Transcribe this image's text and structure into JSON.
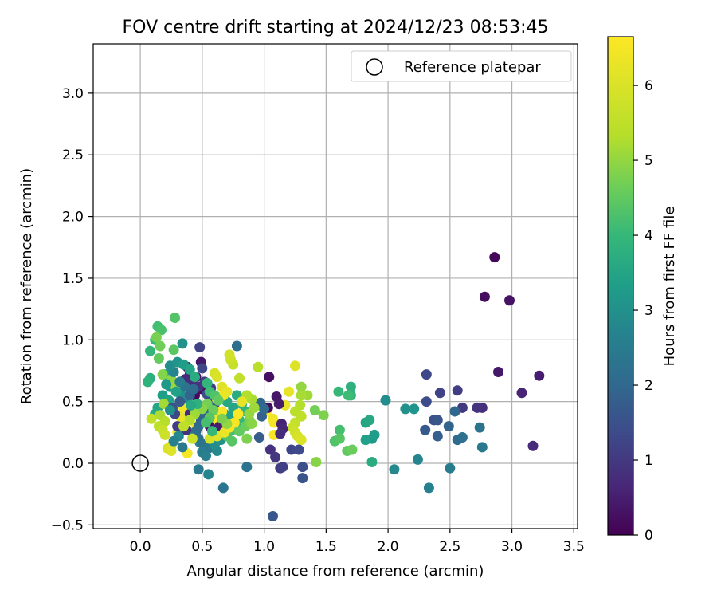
{
  "chart_data": {
    "type": "scatter",
    "title": "FOV centre drift starting at 2024/12/23 08:53:45",
    "xlabel": "Angular distance from reference (arcmin)",
    "ylabel": "Rotation from reference (arcmin)",
    "xlim": [
      -0.38,
      3.53
    ],
    "ylim": [
      -0.53,
      3.4
    ],
    "xticks": [
      0.0,
      0.5,
      1.0,
      1.5,
      2.0,
      2.5,
      3.0,
      3.5
    ],
    "xtick_labels": [
      "0.0",
      "0.5",
      "1.0",
      "1.5",
      "2.0",
      "2.5",
      "3.0",
      "3.5"
    ],
    "yticks": [
      -0.5,
      0.0,
      0.5,
      1.0,
      1.5,
      2.0,
      2.5,
      3.0
    ],
    "ytick_labels": [
      "−0.5",
      "0.0",
      "0.5",
      "1.0",
      "1.5",
      "2.0",
      "2.5",
      "3.0"
    ],
    "grid": true,
    "legend": {
      "position": "top-right",
      "label": "Reference platepar"
    },
    "colorbar": {
      "label": "Hours from first FF file",
      "colormap": "viridis",
      "range": [
        0,
        6.65
      ],
      "ticks": [
        0,
        1,
        2,
        3,
        4,
        5,
        6
      ],
      "tick_labels": [
        "0",
        "1",
        "2",
        "3",
        "4",
        "5",
        "6"
      ]
    },
    "reference_point": {
      "x": 0.0,
      "y": 0.0
    },
    "points": [
      [
        2.86,
        1.67,
        0.1
      ],
      [
        2.78,
        1.35,
        0.2
      ],
      [
        2.98,
        1.32,
        0.3
      ],
      [
        2.89,
        0.74,
        0.4
      ],
      [
        3.22,
        0.71,
        0.5
      ],
      [
        3.08,
        0.57,
        0.6
      ],
      [
        3.17,
        0.14,
        0.7
      ],
      [
        2.76,
        0.45,
        0.8
      ],
      [
        2.72,
        0.45,
        0.9
      ],
      [
        2.6,
        0.45,
        1.0
      ],
      [
        2.56,
        0.59,
        1.1
      ],
      [
        2.42,
        0.57,
        1.2
      ],
      [
        2.31,
        0.72,
        1.3
      ],
      [
        2.31,
        0.5,
        1.4
      ],
      [
        2.37,
        0.35,
        1.5
      ],
      [
        2.4,
        0.35,
        1.6
      ],
      [
        2.3,
        0.27,
        1.7
      ],
      [
        2.4,
        0.22,
        1.8
      ],
      [
        2.49,
        0.3,
        1.9
      ],
      [
        2.54,
        0.42,
        2.0
      ],
      [
        2.56,
        0.19,
        2.1
      ],
      [
        2.6,
        0.21,
        2.2
      ],
      [
        2.74,
        0.29,
        2.3
      ],
      [
        2.76,
        0.13,
        2.4
      ],
      [
        2.5,
        -0.04,
        2.5
      ],
      [
        2.33,
        -0.2,
        2.6
      ],
      [
        2.24,
        0.03,
        2.7
      ],
      [
        2.05,
        -0.05,
        2.8
      ],
      [
        1.98,
        0.51,
        2.9
      ],
      [
        2.14,
        0.44,
        3.0
      ],
      [
        2.21,
        0.44,
        3.1
      ],
      [
        1.87,
        0.2,
        3.2
      ],
      [
        1.89,
        0.23,
        3.3
      ],
      [
        1.82,
        0.19,
        3.4
      ],
      [
        1.82,
        0.33,
        3.5
      ],
      [
        1.85,
        0.35,
        3.6
      ],
      [
        1.87,
        0.01,
        3.7
      ],
      [
        1.7,
        0.62,
        3.8
      ],
      [
        1.7,
        0.55,
        3.9
      ],
      [
        1.6,
        0.58,
        4.0
      ],
      [
        1.68,
        0.55,
        4.1
      ],
      [
        1.61,
        0.27,
        4.2
      ],
      [
        1.57,
        0.18,
        4.3
      ],
      [
        1.61,
        0.2,
        4.4
      ],
      [
        1.67,
        0.1,
        4.5
      ],
      [
        1.71,
        0.11,
        4.6
      ],
      [
        1.41,
        0.43,
        4.7
      ],
      [
        1.48,
        0.39,
        4.8
      ],
      [
        1.42,
        0.01,
        4.9
      ],
      [
        1.3,
        0.62,
        5.0
      ],
      [
        1.35,
        0.55,
        5.1
      ],
      [
        1.3,
        0.55,
        5.2
      ],
      [
        1.29,
        0.47,
        5.3
      ],
      [
        1.25,
        0.42,
        5.4
      ],
      [
        1.3,
        0.38,
        5.5
      ],
      [
        1.25,
        0.33,
        5.6
      ],
      [
        1.23,
        0.29,
        5.7
      ],
      [
        1.25,
        0.25,
        5.8
      ],
      [
        1.27,
        0.22,
        5.9
      ],
      [
        1.3,
        0.19,
        6.0
      ],
      [
        1.25,
        0.79,
        6.1
      ],
      [
        1.2,
        0.58,
        6.2
      ],
      [
        1.17,
        0.47,
        6.3
      ],
      [
        1.07,
        0.36,
        6.4
      ],
      [
        1.08,
        0.33,
        6.5
      ],
      [
        1.08,
        0.23,
        6.55
      ],
      [
        1.02,
        0.42,
        6.6
      ],
      [
        1.03,
        0.45,
        0.15
      ],
      [
        1.04,
        0.7,
        0.25
      ],
      [
        1.1,
        0.54,
        0.35
      ],
      [
        1.12,
        0.48,
        0.45
      ],
      [
        1.14,
        0.32,
        0.55
      ],
      [
        1.15,
        0.28,
        0.65
      ],
      [
        1.13,
        0.24,
        0.75
      ],
      [
        1.05,
        0.11,
        0.85
      ],
      [
        1.09,
        0.05,
        0.95
      ],
      [
        1.13,
        -0.04,
        1.05
      ],
      [
        1.15,
        -0.03,
        1.15
      ],
      [
        1.22,
        0.11,
        1.25
      ],
      [
        1.28,
        0.11,
        1.35
      ],
      [
        1.31,
        -0.03,
        1.45
      ],
      [
        1.31,
        -0.12,
        1.55
      ],
      [
        1.07,
        -0.43,
        1.65
      ],
      [
        0.96,
        0.21,
        1.75
      ],
      [
        0.98,
        0.38,
        1.85
      ],
      [
        0.97,
        0.49,
        1.95
      ],
      [
        1.0,
        0.44,
        2.05
      ],
      [
        0.78,
        0.95,
        2.15
      ],
      [
        0.86,
        -0.03,
        2.25
      ],
      [
        0.67,
        -0.2,
        2.35
      ],
      [
        0.47,
        -0.05,
        2.45
      ],
      [
        0.52,
        0.12,
        2.55
      ],
      [
        0.48,
        0.17,
        2.65
      ],
      [
        0.42,
        0.25,
        2.75
      ],
      [
        0.37,
        0.49,
        2.85
      ],
      [
        0.33,
        0.55,
        2.95
      ],
      [
        0.34,
        0.97,
        3.05
      ],
      [
        0.24,
        0.62,
        3.15
      ],
      [
        0.2,
        0.72,
        3.25
      ],
      [
        0.18,
        0.55,
        3.35
      ],
      [
        0.23,
        0.51,
        3.45
      ],
      [
        0.14,
        0.45,
        3.55
      ],
      [
        0.12,
        0.4,
        3.65
      ],
      [
        0.08,
        0.69,
        3.75
      ],
      [
        0.06,
        0.66,
        3.85
      ],
      [
        0.08,
        0.91,
        3.95
      ],
      [
        0.12,
        1.0,
        4.05
      ],
      [
        0.14,
        1.11,
        4.15
      ],
      [
        0.17,
        1.08,
        4.25
      ],
      [
        0.28,
        1.18,
        4.35
      ],
      [
        0.27,
        0.92,
        4.45
      ],
      [
        0.15,
        0.85,
        4.55
      ],
      [
        0.16,
        0.95,
        4.65
      ],
      [
        0.13,
        1.02,
        4.75
      ],
      [
        0.18,
        0.72,
        4.85
      ],
      [
        0.25,
        0.68,
        4.95
      ],
      [
        0.28,
        0.63,
        5.05
      ],
      [
        0.19,
        0.48,
        5.15
      ],
      [
        0.16,
        0.39,
        5.25
      ],
      [
        0.2,
        0.34,
        5.35
      ],
      [
        0.15,
        0.3,
        5.45
      ],
      [
        0.09,
        0.36,
        5.55
      ],
      [
        0.18,
        0.27,
        5.65
      ],
      [
        0.2,
        0.23,
        5.75
      ],
      [
        0.25,
        0.14,
        5.85
      ],
      [
        0.22,
        0.12,
        5.95
      ],
      [
        0.25,
        0.1,
        6.05
      ],
      [
        0.35,
        0.34,
        6.15
      ],
      [
        0.32,
        0.38,
        6.25
      ],
      [
        0.35,
        0.45,
        6.35
      ],
      [
        0.3,
        0.25,
        6.45
      ],
      [
        0.38,
        0.08,
        6.5
      ],
      [
        0.45,
        0.3,
        6.6
      ],
      [
        0.44,
        0.55,
        0.1
      ],
      [
        0.5,
        0.6,
        0.2
      ],
      [
        0.45,
        0.7,
        0.3
      ],
      [
        0.49,
        0.82,
        0.4
      ],
      [
        0.38,
        0.78,
        0.5
      ],
      [
        0.4,
        0.72,
        0.6
      ],
      [
        0.36,
        0.68,
        0.7
      ],
      [
        0.42,
        0.66,
        0.8
      ],
      [
        0.47,
        0.62,
        0.9
      ],
      [
        0.52,
        0.66,
        1.0
      ],
      [
        0.57,
        0.61,
        1.1
      ],
      [
        0.48,
        0.94,
        1.2
      ],
      [
        0.5,
        0.77,
        1.3
      ],
      [
        0.54,
        0.56,
        1.4
      ],
      [
        0.58,
        0.52,
        1.5
      ],
      [
        0.6,
        0.48,
        1.6
      ],
      [
        0.53,
        0.44,
        1.7
      ],
      [
        0.52,
        0.4,
        1.8
      ],
      [
        0.49,
        0.35,
        1.9
      ],
      [
        0.47,
        0.3,
        2.0
      ],
      [
        0.45,
        0.26,
        2.1
      ],
      [
        0.47,
        0.2,
        2.2
      ],
      [
        0.5,
        0.16,
        2.3
      ],
      [
        0.55,
        0.12,
        2.4
      ],
      [
        0.5,
        0.09,
        2.5
      ],
      [
        0.53,
        0.06,
        2.6
      ],
      [
        0.55,
        -0.09,
        2.7
      ],
      [
        0.62,
        0.1,
        2.8
      ],
      [
        0.6,
        0.15,
        2.9
      ],
      [
        0.65,
        0.19,
        3.0
      ],
      [
        0.62,
        0.27,
        3.1
      ],
      [
        0.64,
        0.36,
        3.2
      ],
      [
        0.68,
        0.4,
        3.3
      ],
      [
        0.72,
        0.38,
        3.4
      ],
      [
        0.75,
        0.45,
        3.5
      ],
      [
        0.7,
        0.5,
        3.6
      ],
      [
        0.78,
        0.55,
        3.7
      ],
      [
        0.82,
        0.48,
        3.8
      ],
      [
        0.85,
        0.42,
        3.9
      ],
      [
        0.8,
        0.35,
        4.0
      ],
      [
        0.78,
        0.3,
        4.1
      ],
      [
        0.74,
        0.27,
        4.2
      ],
      [
        0.7,
        0.22,
        4.3
      ],
      [
        0.74,
        0.18,
        4.4
      ],
      [
        0.8,
        0.26,
        4.5
      ],
      [
        0.85,
        0.3,
        4.6
      ],
      [
        0.88,
        0.35,
        4.7
      ],
      [
        0.86,
        0.2,
        4.8
      ],
      [
        0.9,
        0.32,
        4.9
      ],
      [
        0.88,
        0.4,
        5.0
      ],
      [
        0.92,
        0.45,
        5.1
      ],
      [
        0.9,
        0.52,
        5.2
      ],
      [
        0.86,
        0.55,
        5.3
      ],
      [
        0.95,
        0.78,
        5.4
      ],
      [
        0.8,
        0.69,
        5.5
      ],
      [
        0.75,
        0.8,
        5.6
      ],
      [
        0.73,
        0.84,
        5.7
      ],
      [
        0.72,
        0.88,
        5.8
      ],
      [
        0.6,
        0.73,
        5.9
      ],
      [
        0.62,
        0.7,
        6.0
      ],
      [
        0.66,
        0.62,
        6.1
      ],
      [
        0.7,
        0.58,
        6.2
      ],
      [
        0.67,
        0.55,
        6.3
      ],
      [
        0.62,
        0.52,
        6.4
      ],
      [
        0.66,
        0.42,
        6.5
      ],
      [
        0.6,
        0.36,
        6.6
      ],
      [
        0.56,
        0.3,
        0.3
      ],
      [
        0.64,
        0.3,
        0.5
      ],
      [
        0.4,
        0.4,
        0.7
      ],
      [
        0.37,
        0.27,
        0.9
      ],
      [
        0.3,
        0.3,
        1.1
      ],
      [
        0.28,
        0.4,
        1.3
      ],
      [
        0.26,
        0.45,
        1.5
      ],
      [
        0.32,
        0.5,
        1.7
      ],
      [
        0.4,
        0.55,
        1.9
      ],
      [
        0.43,
        0.6,
        2.1
      ],
      [
        0.36,
        0.62,
        2.3
      ],
      [
        0.32,
        0.66,
        2.5
      ],
      [
        0.27,
        0.74,
        2.7
      ],
      [
        0.24,
        0.79,
        2.9
      ],
      [
        0.3,
        0.82,
        3.1
      ],
      [
        0.35,
        0.8,
        3.3
      ],
      [
        0.4,
        0.76,
        3.5
      ],
      [
        0.44,
        0.7,
        3.7
      ],
      [
        0.54,
        0.65,
        3.9
      ],
      [
        0.56,
        0.58,
        4.1
      ],
      [
        0.6,
        0.55,
        4.3
      ],
      [
        0.63,
        0.51,
        4.5
      ],
      [
        0.54,
        0.48,
        4.7
      ],
      [
        0.5,
        0.44,
        4.9
      ],
      [
        0.44,
        0.4,
        5.1
      ],
      [
        0.4,
        0.35,
        5.3
      ],
      [
        0.35,
        0.3,
        5.5
      ],
      [
        0.42,
        0.2,
        5.7
      ],
      [
        0.56,
        0.2,
        5.9
      ],
      [
        0.62,
        0.22,
        6.1
      ],
      [
        0.68,
        0.25,
        6.3
      ],
      [
        0.72,
        0.29,
        6.45
      ],
      [
        0.76,
        0.33,
        6.55
      ],
      [
        0.79,
        0.4,
        6.6
      ],
      [
        0.82,
        0.5,
        6.25
      ],
      [
        0.7,
        0.32,
        5.0
      ],
      [
        0.66,
        0.36,
        4.8
      ],
      [
        0.59,
        0.43,
        4.6
      ],
      [
        0.56,
        0.37,
        4.4
      ],
      [
        0.53,
        0.33,
        4.2
      ],
      [
        0.58,
        0.26,
        4.0
      ],
      [
        0.46,
        0.48,
        3.8
      ],
      [
        0.41,
        0.47,
        3.6
      ],
      [
        0.29,
        0.58,
        3.4
      ],
      [
        0.21,
        0.64,
        3.2
      ],
      [
        0.24,
        0.43,
        3.0
      ],
      [
        0.31,
        0.22,
        2.8
      ],
      [
        0.27,
        0.18,
        2.6
      ],
      [
        0.34,
        0.13,
        2.4
      ]
    ]
  }
}
